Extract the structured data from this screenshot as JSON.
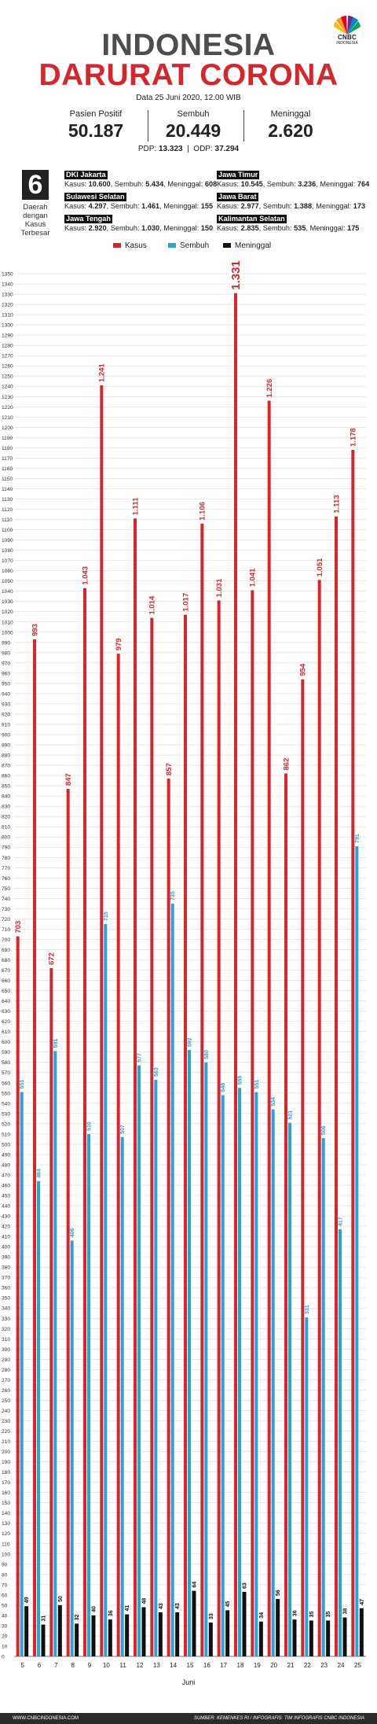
{
  "header": {
    "brand": "CNBC",
    "brand_sub": "INDONESIA",
    "title_line1": "INDONESIA",
    "title_line2": "DARURAT CORONA",
    "date": "Data 25 Juni 2020, 12.00 WIB"
  },
  "stats": [
    {
      "label": "Pasien Positif",
      "value": "50.187"
    },
    {
      "label": "Sembuh",
      "value": "20.449"
    },
    {
      "label": "Meninggal",
      "value": "2.620"
    }
  ],
  "pdp": {
    "pdp_label": "PDP:",
    "pdp_value": "13.323",
    "odp_label": "ODP:",
    "odp_value": "37.294"
  },
  "top_regions": {
    "count": "6",
    "caption_lines": [
      "Daerah",
      "dengan",
      "Kasus",
      "Terbesar"
    ],
    "kasus_label": "Kasus:",
    "sembuh_label": "Sembuh:",
    "meninggal_label": "Meninggal:",
    "items": [
      {
        "name": "DKI Jakarta",
        "kasus": "10.600",
        "sembuh": "5.434",
        "meninggal": "608"
      },
      {
        "name": "Jawa Timur",
        "kasus": "10.545",
        "sembuh": "3.236",
        "meninggal": "764"
      },
      {
        "name": "Sulawesi Selatan",
        "kasus": "4.297",
        "sembuh": "1.461",
        "meninggal": "155"
      },
      {
        "name": "Jawa Barat",
        "kasus": "2.977",
        "sembuh": "1.388",
        "meninggal": "173"
      },
      {
        "name": "Jawa Tengah",
        "kasus": "2.920",
        "sembuh": "1.030",
        "meninggal": "150"
      },
      {
        "name": "Kalimantan Selatan",
        "kasus": "2.835",
        "sembuh": "535",
        "meninggal": "175"
      }
    ]
  },
  "colors": {
    "kasus": "#d7262b",
    "sembuh": "#27a3d8",
    "meninggal": "#111111",
    "title_gray": "#4d4d4d",
    "grid": "#d9d9d9"
  },
  "chart_data": {
    "type": "bar",
    "xlabel": "Juni",
    "ylabel": "",
    "ylim": [
      0,
      1350
    ],
    "ytick_step": 10,
    "grid": true,
    "legend_position": "top",
    "categories": [
      "5",
      "6",
      "7",
      "8",
      "9",
      "10",
      "11",
      "12",
      "13",
      "14",
      "15",
      "16",
      "17",
      "18",
      "19",
      "20",
      "21",
      "22",
      "23",
      "24",
      "25"
    ],
    "series": [
      {
        "name": "Kasus",
        "color": "#d7262b",
        "values": [
          703,
          993,
          672,
          847,
          1043,
          1241,
          979,
          1111,
          1014,
          857,
          1017,
          1106,
          1031,
          1331,
          1041,
          1226,
          862,
          954,
          1051,
          1113,
          1178
        ],
        "labels": [
          "703",
          "993",
          "672",
          "847",
          "1.043",
          "1.241",
          "979",
          "1.111",
          "1.014",
          "857",
          "1.017",
          "1.106",
          "1.031",
          "1.331",
          "1.041",
          "1.226",
          "862",
          "954",
          "1.051",
          "1.113",
          "1.178"
        ]
      },
      {
        "name": "Sembuh",
        "color": "#27a3d8",
        "values": [
          551,
          464,
          591,
          406,
          510,
          715,
          507,
          577,
          563,
          735,
          592,
          580,
          548,
          555,
          551,
          534,
          521,
          331,
          506,
          417,
          791
        ],
        "labels": [
          "551",
          "464",
          "591",
          "406",
          "510",
          "715",
          "507",
          "577",
          "563",
          "735",
          "592",
          "580",
          "548",
          "555",
          "551",
          "534",
          "521",
          "331",
          "506",
          "417",
          "791"
        ]
      },
      {
        "name": "Meninggal",
        "color": "#111111",
        "values": [
          49,
          31,
          50,
          32,
          40,
          36,
          41,
          48,
          43,
          43,
          64,
          33,
          45,
          63,
          34,
          56,
          36,
          35,
          35,
          38,
          47
        ],
        "labels": [
          "49",
          "31",
          "50",
          "32",
          "40",
          "36",
          "41",
          "48",
          "43",
          "43",
          "64",
          "33",
          "45",
          "63",
          "34",
          "56",
          "36",
          "35",
          "35",
          "38",
          "47"
        ]
      }
    ]
  },
  "footer": {
    "left": "WWW.CNBCINDONESIA.COM",
    "right": "SUMBER: KEMENKES RI / INFOGRAFIS: TIM INFOGRAFIS CNBC INDONESIA"
  }
}
